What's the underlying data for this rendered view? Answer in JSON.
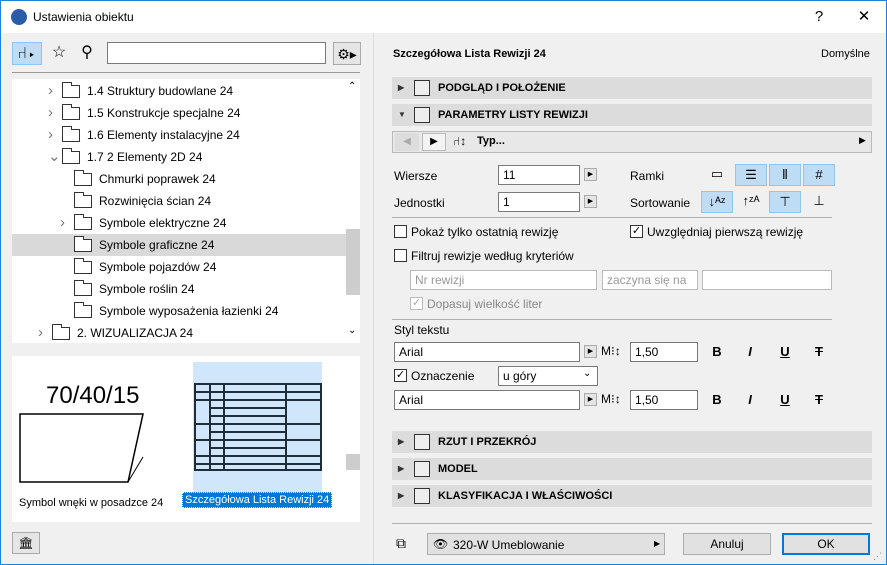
{
  "window": {
    "title": "Ustawienia obiektu",
    "help": "?",
    "close": "✕"
  },
  "left": {
    "search": {
      "value": "",
      "placeholder": ""
    },
    "tree": [
      {
        "label": "1.4 Struktury budowlane 24",
        "level": 1,
        "expander": "collapsed"
      },
      {
        "label": "1.5 Konstrukcje specjalne 24",
        "level": 1,
        "expander": "collapsed"
      },
      {
        "label": "1.6 Elementy instalacyjne 24",
        "level": 1,
        "expander": "collapsed"
      },
      {
        "label": "1.7 2 Elementy 2D 24",
        "level": 1,
        "expander": "expanded"
      },
      {
        "label": "Chmurki poprawek 24",
        "level": 2,
        "expander": "none"
      },
      {
        "label": "Rozwinięcia ścian 24",
        "level": 2,
        "expander": "none"
      },
      {
        "label": "Symbole elektryczne 24",
        "level": 2,
        "expander": "collapsed"
      },
      {
        "label": "Symbole graficzne 24",
        "level": 2,
        "expander": "none",
        "selected": true
      },
      {
        "label": "Symbole pojazdów 24",
        "level": 2,
        "expander": "none"
      },
      {
        "label": "Symbole roślin 24",
        "level": 2,
        "expander": "none"
      },
      {
        "label": "Symbole wyposażenia łazienki 24",
        "level": 2,
        "expander": "none"
      },
      {
        "label": "2. WIZUALIZACJA 24",
        "level": 0,
        "expander": "collapsed"
      }
    ],
    "previews": [
      {
        "label": "Symbol wnęki w posadzce 24",
        "symbol_text": "70/40/15"
      },
      {
        "label": "Szczegółowa Lista Rewizji 24",
        "selected": true
      }
    ]
  },
  "right": {
    "object_name": "Szczegółowa Lista Rewizji 24",
    "default_label": "Domyślne",
    "sections_top": [
      "PODGLĄD I POŁOŻENIE",
      "PARAMETRY LISTY REWIZJI"
    ],
    "nav_type": "Typ...",
    "wiersze_label": "Wiersze",
    "wiersze": "11",
    "jednostki_label": "Jednostki",
    "jednostki": "1",
    "ramki_label": "Ramki",
    "sortowanie_label": "Sortowanie",
    "show_last": {
      "label": "Pokaż tylko ostatnią rewizję",
      "checked": false
    },
    "include_first": {
      "label": "Uwzględniaj pierwszą rewizję",
      "checked": true
    },
    "filter": {
      "label": "Filtruj rewizje według kryteriów",
      "checked": false
    },
    "filter_field": "Nr rewizji",
    "filter_op": "zaczyna się na",
    "filter_value": "",
    "match_case": {
      "label": "Dopasuj wielkość liter",
      "checked": true
    },
    "text_style_label": "Styl tekstu",
    "font1": "Arial",
    "size1": "1,50",
    "marker": {
      "label": "Oznaczenie",
      "checked": true,
      "position": "u góry"
    },
    "font2": "Arial",
    "size2": "1,50",
    "format": {
      "bold": "B",
      "italic": "I",
      "underline": "U",
      "strike": "T"
    },
    "sections_bottom": [
      "RZUT I PRZEKRÓJ",
      "MODEL",
      "KLASYFIKACJA I WŁAŚCIWOŚCI"
    ],
    "layer": "320-W Umeblowanie",
    "cancel": "Anuluj",
    "ok": "OK"
  },
  "colors": {
    "accent": "#1883d7",
    "selection": "#bfdcf5",
    "section": "#dcdcdc"
  }
}
